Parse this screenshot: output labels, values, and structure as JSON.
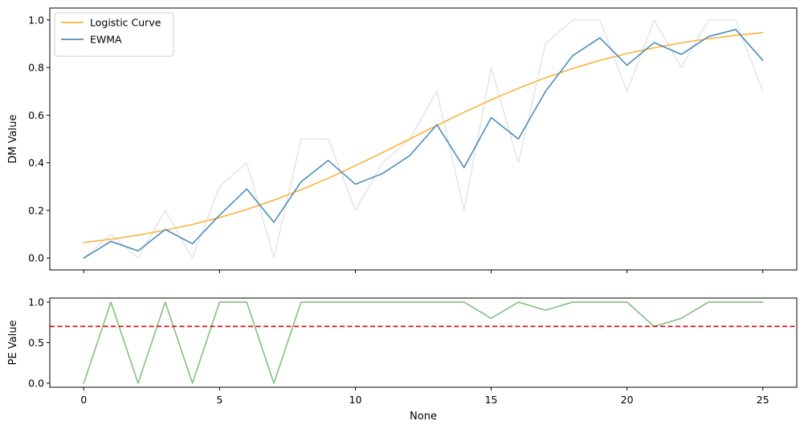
{
  "chart_data": [
    {
      "type": "line",
      "ylabel": "DM Value",
      "xlim": [
        -1.25,
        26.25
      ],
      "ylim": [
        -0.05,
        1.05
      ],
      "yticks": [
        0.0,
        0.2,
        0.4,
        0.6,
        0.8,
        1.0
      ],
      "ytick_labels": [
        "0.0",
        "0.2",
        "0.4",
        "0.6",
        "0.8",
        "1.0"
      ],
      "xticks": [
        0,
        5,
        10,
        15,
        20,
        25
      ],
      "x": [
        0,
        1,
        2,
        3,
        4,
        5,
        6,
        7,
        8,
        9,
        10,
        11,
        12,
        13,
        14,
        15,
        16,
        17,
        18,
        19,
        20,
        21,
        22,
        23,
        24,
        25
      ],
      "legend": {
        "position": "top-left"
      },
      "series": [
        {
          "name": "",
          "color": "#e6e6e6",
          "values": [
            0.0,
            0.1,
            0.0,
            0.2,
            0.0,
            0.3,
            0.4,
            0.0,
            0.5,
            0.5,
            0.2,
            0.4,
            0.5,
            0.7,
            0.2,
            0.8,
            0.4,
            0.9,
            1.0,
            1.0,
            0.7,
            1.0,
            0.8,
            1.0,
            1.0,
            0.7
          ]
        },
        {
          "name": "Logistic Curve",
          "color": "#fbb33a",
          "values": [
            0.065,
            0.079,
            0.096,
            0.117,
            0.141,
            0.17,
            0.204,
            0.243,
            0.287,
            0.335,
            0.388,
            0.443,
            0.5,
            0.557,
            0.612,
            0.665,
            0.713,
            0.757,
            0.796,
            0.83,
            0.859,
            0.883,
            0.904,
            0.921,
            0.935,
            0.947
          ]
        },
        {
          "name": "EWMA",
          "color": "#4c8dbd",
          "values": [
            0.0,
            0.07,
            0.03,
            0.12,
            0.06,
            0.18,
            0.29,
            0.15,
            0.32,
            0.41,
            0.31,
            0.355,
            0.43,
            0.56,
            0.38,
            0.59,
            0.5,
            0.7,
            0.85,
            0.925,
            0.81,
            0.905,
            0.855,
            0.93,
            0.96,
            0.83
          ]
        }
      ]
    },
    {
      "type": "line",
      "xlabel": "None",
      "ylabel": "PE Value",
      "xlim": [
        -1.25,
        26.25
      ],
      "ylim": [
        -0.05,
        1.05
      ],
      "yticks": [
        0.0,
        0.5,
        1.0
      ],
      "ytick_labels": [
        "0.0",
        "0.5",
        "1.0"
      ],
      "xticks": [
        0,
        5,
        10,
        15,
        20,
        25
      ],
      "xtick_labels": [
        "0",
        "5",
        "10",
        "15",
        "20",
        "25"
      ],
      "x": [
        0,
        1,
        2,
        3,
        4,
        5,
        6,
        7,
        8,
        9,
        10,
        11,
        12,
        13,
        14,
        15,
        16,
        17,
        18,
        19,
        20,
        21,
        22,
        23,
        24,
        25
      ],
      "series": [
        {
          "name": "",
          "color": "#82c17e",
          "values": [
            0.0,
            1.0,
            0.0,
            1.0,
            0.0,
            1.0,
            1.0,
            0.0,
            1.0,
            1.0,
            1.0,
            1.0,
            1.0,
            1.0,
            1.0,
            0.8,
            1.0,
            0.9,
            1.0,
            1.0,
            1.0,
            0.7,
            0.8,
            1.0,
            1.0,
            1.0
          ]
        }
      ],
      "threshold": {
        "y": 0.7,
        "color": "#e8000b",
        "style": "dashed"
      }
    }
  ]
}
